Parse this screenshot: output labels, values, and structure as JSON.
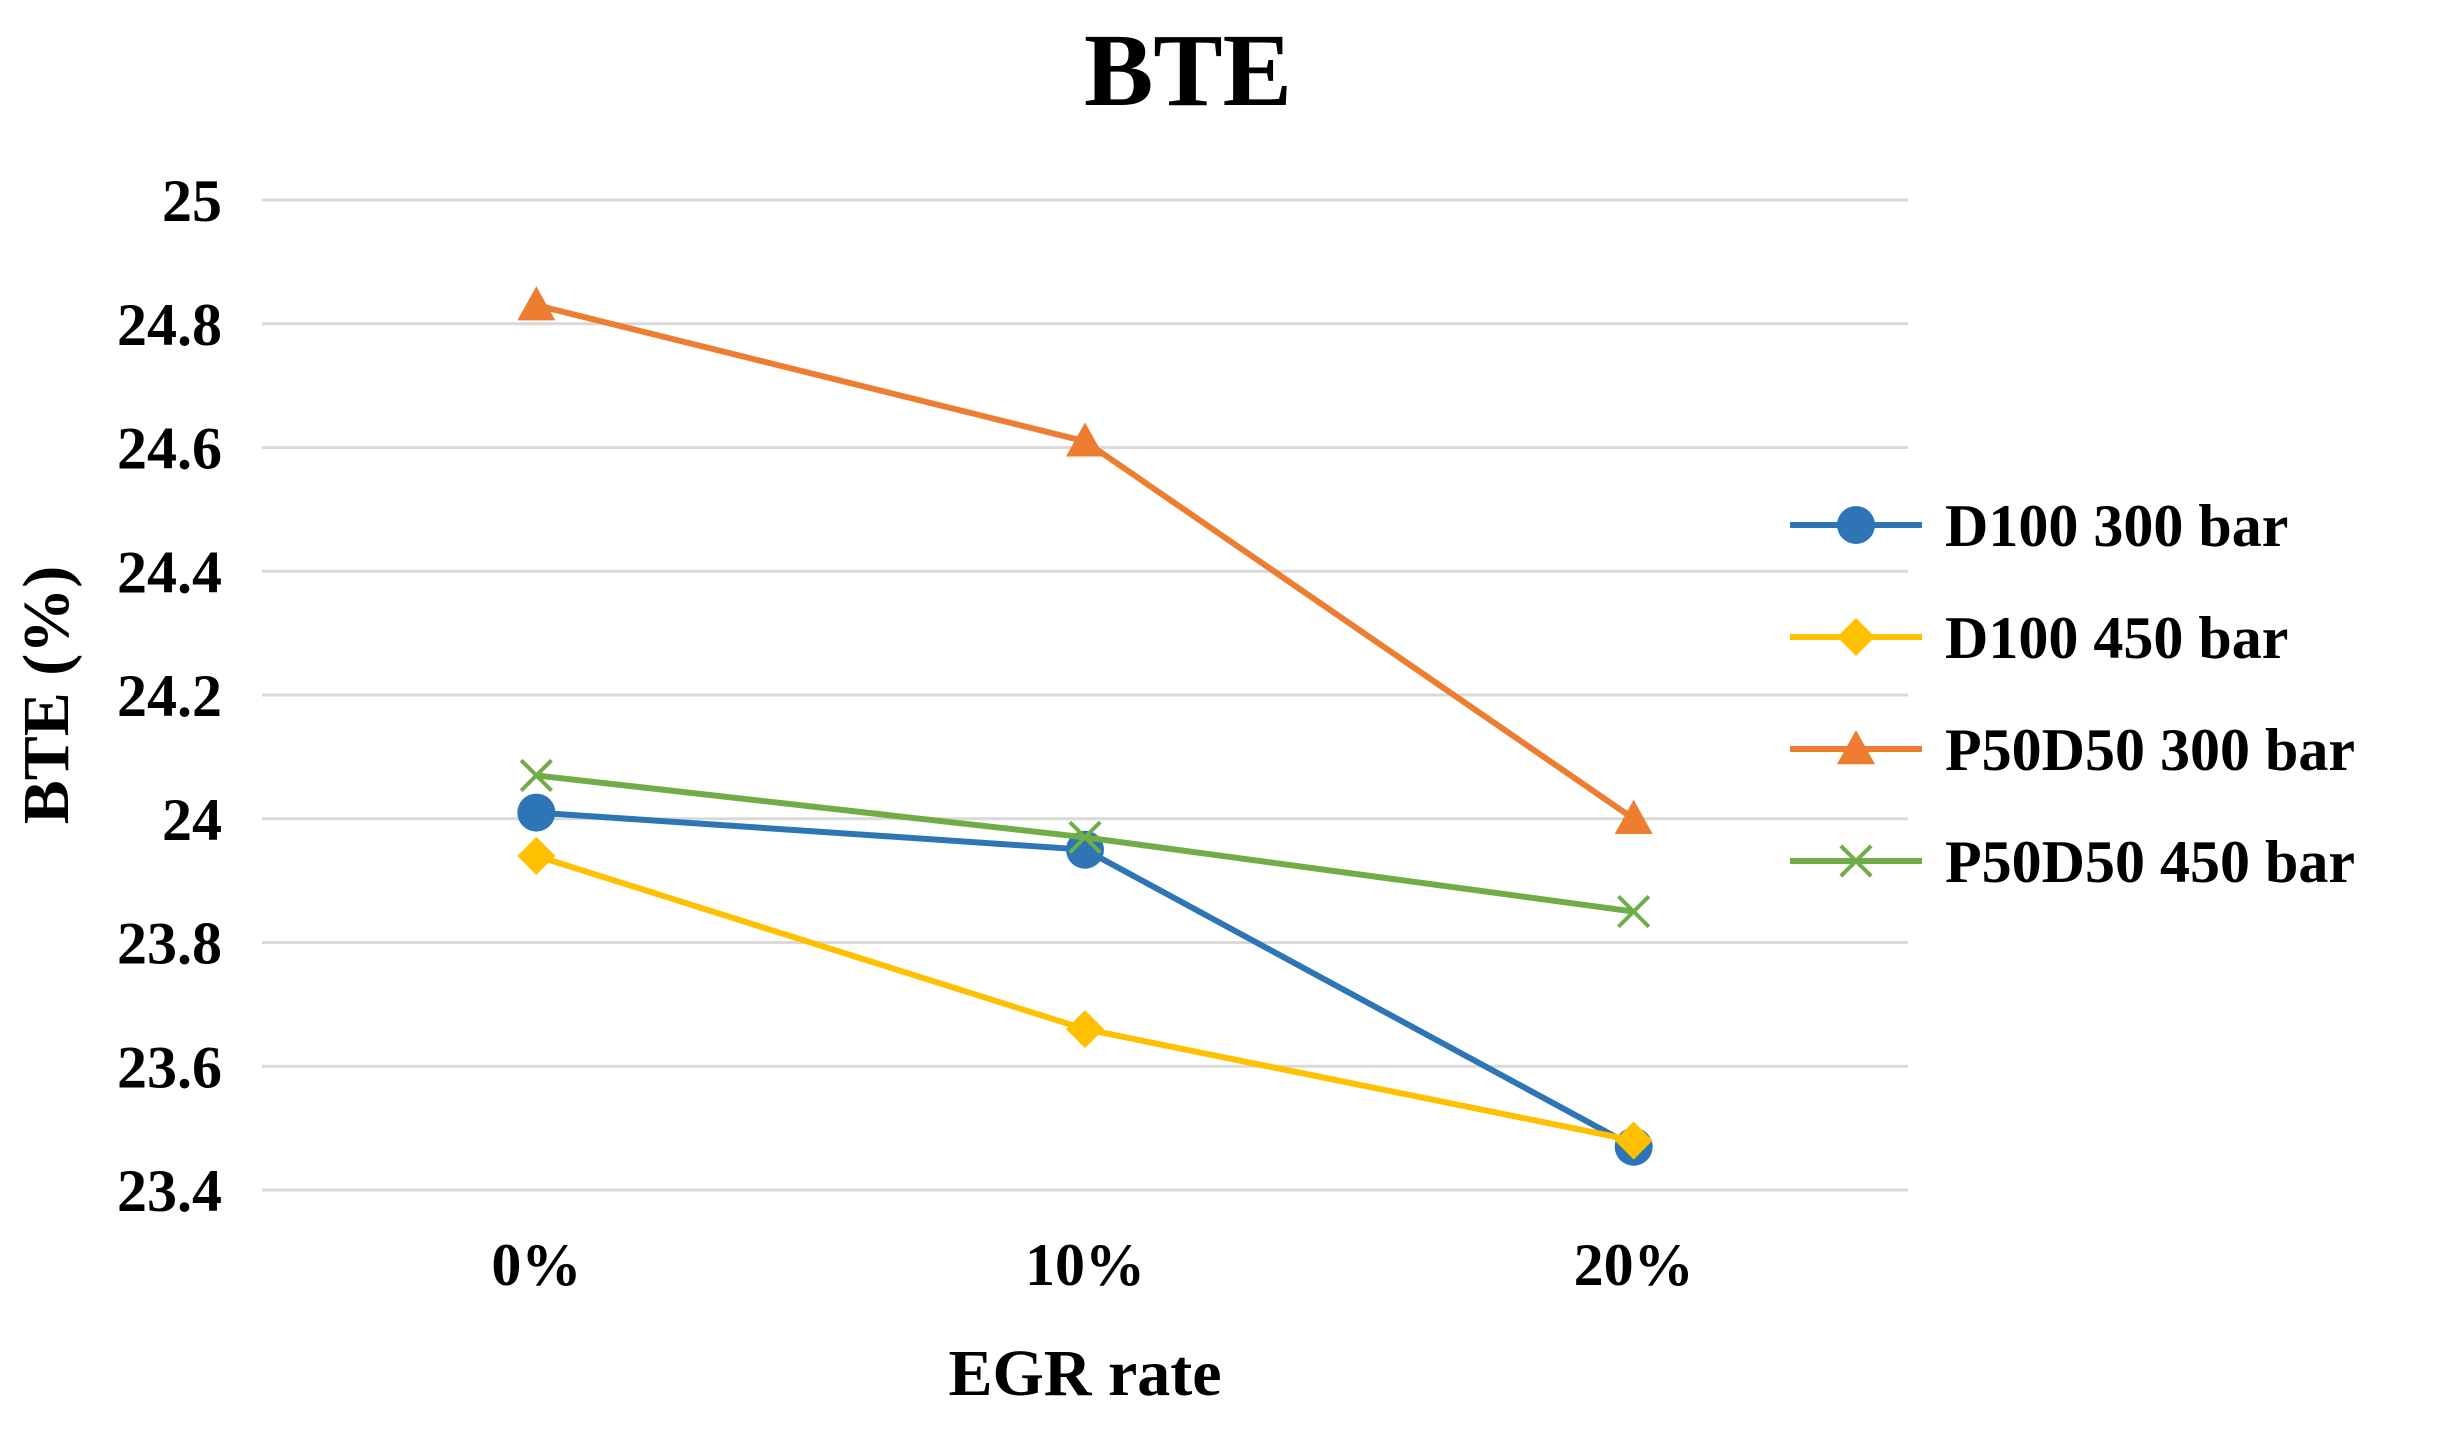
{
  "chart_data": {
    "type": "line",
    "title": "BTE",
    "xlabel": "EGR rate",
    "ylabel": "BTE (%)",
    "categories": [
      "0%",
      "10%",
      "20%"
    ],
    "ylim": [
      23.4,
      25
    ],
    "ytick_step": 0.2,
    "yticks": [
      "23.4",
      "23.6",
      "23.8",
      "24",
      "24.2",
      "24.4",
      "24.6",
      "24.8",
      "25"
    ],
    "grid": true,
    "legend_position": "right",
    "series": [
      {
        "name": "D100 300 bar",
        "values": [
          24.01,
          23.95,
          23.47
        ],
        "color": "#2e75b6",
        "marker": "circle"
      },
      {
        "name": "D100 450 bar",
        "values": [
          23.94,
          23.66,
          23.48
        ],
        "color": "#ffc000",
        "marker": "diamond"
      },
      {
        "name": "P50D50 300 bar",
        "values": [
          24.83,
          24.61,
          24.0
        ],
        "color": "#ed7d31",
        "marker": "triangle"
      },
      {
        "name": "P50D50 450 bar",
        "values": [
          24.07,
          23.97,
          23.85
        ],
        "color": "#70ad47",
        "marker": "x"
      }
    ]
  }
}
